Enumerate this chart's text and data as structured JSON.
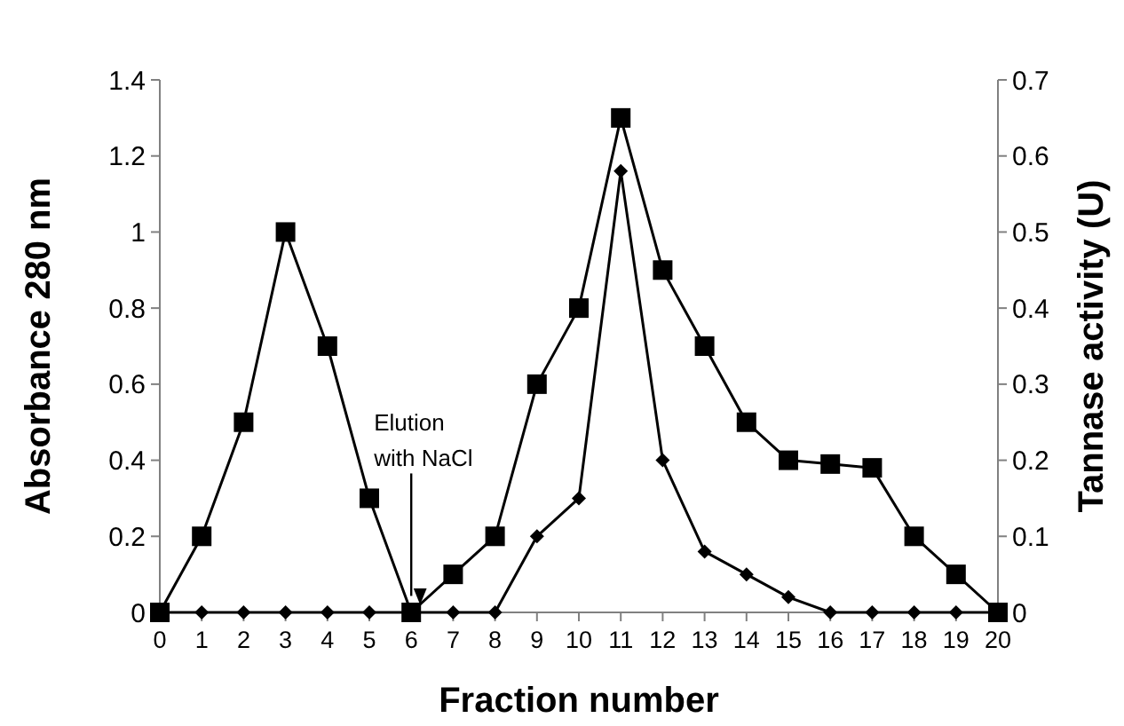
{
  "chart_data": {
    "type": "line",
    "xlabel": "Fraction number",
    "ylabel": "Absorbance 280 nm",
    "y2label": "Tannase activity (U)",
    "x": [
      0,
      1,
      2,
      3,
      4,
      5,
      6,
      7,
      8,
      9,
      10,
      11,
      12,
      13,
      14,
      15,
      16,
      17,
      18,
      19,
      20
    ],
    "series": [
      {
        "color": "#000000",
        "marker": "square",
        "values": [
          0,
          0.2,
          0.5,
          1.0,
          0.7,
          0.3,
          0,
          0.1,
          0.2,
          0.6,
          0.8,
          1.3,
          0.9,
          0.7,
          0.5,
          0.4,
          0.39,
          0.38,
          0.2,
          0.1,
          0
        ]
      },
      {
        "color": "#000000",
        "marker": "diamond",
        "axis": "y2",
        "values": [
          0,
          0,
          0,
          0,
          0,
          0,
          0,
          0,
          0,
          0.1,
          0.15,
          0.58,
          0.2,
          0.08,
          0.05,
          0.02,
          0,
          0,
          0,
          0,
          0
        ]
      }
    ],
    "xlim": [
      0,
      20
    ],
    "xticks": [
      0,
      1,
      2,
      3,
      4,
      5,
      6,
      7,
      8,
      9,
      10,
      11,
      12,
      13,
      14,
      15,
      16,
      17,
      18,
      19,
      20
    ],
    "ylim": [
      0,
      1.4
    ],
    "yticks": [
      0,
      0.2,
      0.4,
      0.6,
      0.8,
      1,
      1.2,
      1.4
    ],
    "y2lim": [
      0,
      0.7
    ],
    "y2ticks": [
      0,
      0.1,
      0.2,
      0.3,
      0.4,
      0.5,
      0.6,
      0.7
    ],
    "annotations": [
      {
        "text": "Elution with NaCl",
        "x": 6,
        "y": 0.02
      }
    ],
    "grid": false,
    "line_style": "solid"
  }
}
